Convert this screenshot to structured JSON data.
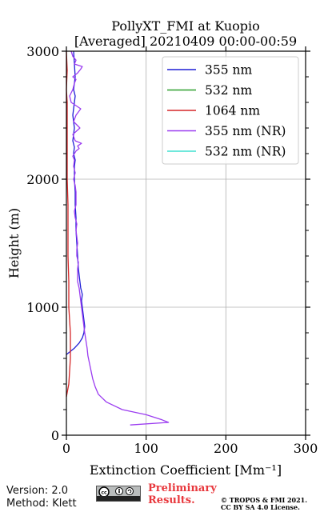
{
  "chart_data": {
    "type": "line",
    "title_line1": "PollyXT_FMI at Kuopio",
    "title_line2": "[Averaged] 20210409 00:00-00:59",
    "xlabel": "Extinction Coefficient [Mm⁻¹]",
    "ylabel": "Height (m)",
    "xlim": [
      0,
      300
    ],
    "ylim": [
      0,
      3000
    ],
    "xticks": [
      "0",
      "100",
      "200",
      "300"
    ],
    "yticks": [
      "0",
      "1000",
      "2000",
      "3000"
    ],
    "grid": true,
    "legend_position": "top-right",
    "series": [
      {
        "name": "355 nm",
        "color": "#1f1fd6",
        "x": [
          0,
          4,
          10,
          16,
          20,
          22,
          23,
          22,
          21,
          20,
          19,
          20,
          18,
          17,
          15,
          14,
          13,
          12,
          12,
          11,
          11,
          10,
          10,
          11,
          9,
          10,
          8,
          9,
          10,
          9,
          8,
          9,
          10,
          11,
          9,
          10,
          11,
          10,
          9
        ],
        "y": [
          630,
          650,
          680,
          720,
          760,
          800,
          850,
          900,
          950,
          1000,
          1050,
          1100,
          1150,
          1200,
          1300,
          1400,
          1500,
          1600,
          1700,
          1800,
          1900,
          2000,
          2100,
          2150,
          2200,
          2250,
          2300,
          2350,
          2400,
          2450,
          2500,
          2550,
          2600,
          2650,
          2700,
          2750,
          2800,
          2900,
          3000
        ]
      },
      {
        "name": "532 nm",
        "color": "#2ca02c",
        "x": [],
        "y": []
      },
      {
        "name": "1064 nm",
        "color": "#d62728",
        "x": [
          0,
          3,
          4,
          5,
          5,
          5,
          4,
          3,
          3,
          2,
          2,
          2,
          1,
          1,
          1,
          1,
          0,
          1,
          0
        ],
        "y": [
          300,
          400,
          500,
          600,
          700,
          800,
          900,
          1000,
          1200,
          1400,
          1600,
          1800,
          2000,
          2200,
          2400,
          2600,
          2700,
          2850,
          3000
        ]
      },
      {
        "name": "355 nm (NR)",
        "color": "#9b3cf0",
        "x": [
          80,
          128,
          120,
          100,
          70,
          50,
          40,
          36,
          33,
          31,
          29,
          27,
          26,
          25,
          24,
          23,
          22,
          21,
          20,
          19,
          18,
          17,
          16,
          14,
          14,
          14,
          15,
          13,
          13,
          14,
          13,
          12,
          13,
          11,
          10,
          12,
          12,
          12,
          11,
          9,
          11,
          9,
          10,
          8,
          10,
          12,
          16,
          14,
          19,
          11,
          8,
          17,
          9,
          12,
          18,
          6,
          4,
          8,
          10,
          12,
          8,
          14,
          18,
          20,
          10,
          12,
          8,
          6
        ],
        "y": [
          80,
          100,
          120,
          160,
          200,
          260,
          320,
          380,
          440,
          500,
          560,
          620,
          680,
          720,
          760,
          800,
          850,
          900,
          950,
          1000,
          1050,
          1100,
          1150,
          1200,
          1250,
          1300,
          1350,
          1400,
          1450,
          1500,
          1550,
          1600,
          1650,
          1700,
          1750,
          1800,
          1850,
          1900,
          1950,
          2000,
          2050,
          2100,
          2150,
          2180,
          2200,
          2220,
          2240,
          2260,
          2280,
          2300,
          2350,
          2400,
          2450,
          2500,
          2550,
          2600,
          2650,
          2700,
          2750,
          2780,
          2800,
          2830,
          2860,
          2880,
          2900,
          2930,
          2960,
          3000
        ]
      },
      {
        "name": "532 nm (NR)",
        "color": "#40e0d0",
        "x": [],
        "y": []
      }
    ]
  },
  "footer": {
    "version": "Version: 2.0",
    "method": "Method: Klett",
    "preliminary_line1": "Preliminary",
    "preliminary_line2": "Results.",
    "copyright_line1": "© TROPOS & FMI 2021.",
    "copyright_line2": "CC BY SA 4.0 License.",
    "license_badge_text": "cc by sa"
  }
}
